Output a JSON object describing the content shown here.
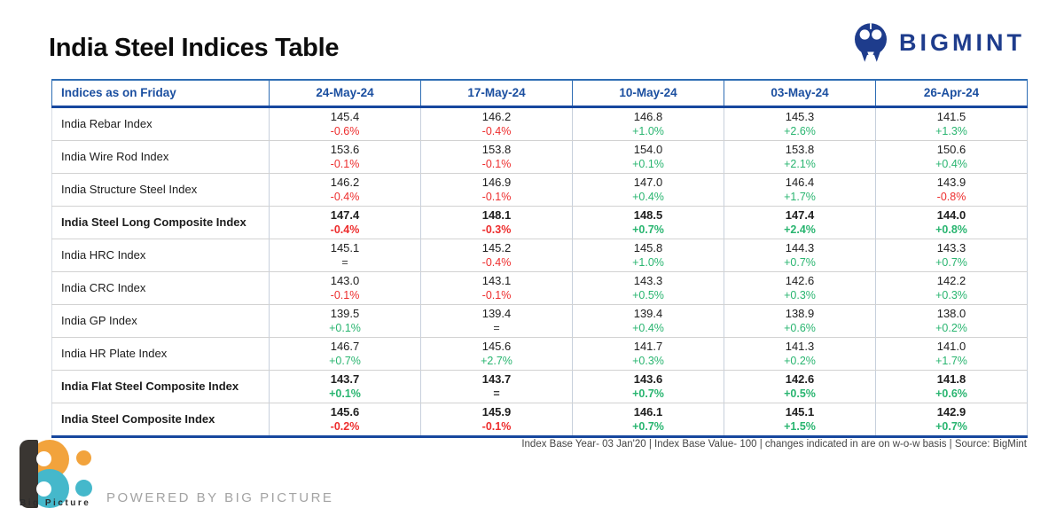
{
  "title": "India Steel Indices Table",
  "brand": {
    "name": "BIGMINT",
    "color": "#1e3c8c"
  },
  "chart_data": {
    "type": "table",
    "title": "India Steel Indices Table",
    "header_label": "Indices as on Friday",
    "columns": [
      "24-May-24",
      "17-May-24",
      "10-May-24",
      "03-May-24",
      "26-Apr-24"
    ],
    "rows": [
      {
        "name": "India Rebar Index",
        "bold": false,
        "values": [
          "145.4",
          "146.2",
          "146.8",
          "145.3",
          "141.5"
        ],
        "changes": [
          "-0.6%",
          "-0.4%",
          "+1.0%",
          "+2.6%",
          "+1.3%"
        ],
        "dirs": [
          "down",
          "down",
          "up",
          "up",
          "up"
        ]
      },
      {
        "name": "India Wire Rod Index",
        "bold": false,
        "values": [
          "153.6",
          "153.8",
          "154.0",
          "153.8",
          "150.6"
        ],
        "changes": [
          "-0.1%",
          "-0.1%",
          "+0.1%",
          "+2.1%",
          "+0.4%"
        ],
        "dirs": [
          "down",
          "down",
          "up",
          "up",
          "up"
        ]
      },
      {
        "name": "India Structure Steel Index",
        "bold": false,
        "values": [
          "146.2",
          "146.9",
          "147.0",
          "146.4",
          "143.9"
        ],
        "changes": [
          "-0.4%",
          "-0.1%",
          "+0.4%",
          "+1.7%",
          "-0.8%"
        ],
        "dirs": [
          "down",
          "down",
          "up",
          "up",
          "down"
        ]
      },
      {
        "name": "India Steel Long Composite Index",
        "bold": true,
        "values": [
          "147.4",
          "148.1",
          "148.5",
          "147.4",
          "144.0"
        ],
        "changes": [
          "-0.4%",
          "-0.3%",
          "+0.7%",
          "+2.4%",
          "+0.8%"
        ],
        "dirs": [
          "down",
          "down",
          "up",
          "up",
          "up"
        ]
      },
      {
        "name": "India HRC Index",
        "bold": false,
        "values": [
          "145.1",
          "145.2",
          "145.8",
          "144.3",
          "143.3"
        ],
        "changes": [
          "=",
          "-0.4%",
          "+1.0%",
          "+0.7%",
          "+0.7%"
        ],
        "dirs": [
          "flat",
          "down",
          "up",
          "up",
          "up"
        ]
      },
      {
        "name": "India CRC Index",
        "bold": false,
        "values": [
          "143.0",
          "143.1",
          "143.3",
          "142.6",
          "142.2"
        ],
        "changes": [
          "-0.1%",
          "-0.1%",
          "+0.5%",
          "+0.3%",
          "+0.3%"
        ],
        "dirs": [
          "down",
          "down",
          "up",
          "up",
          "up"
        ]
      },
      {
        "name": "India GP Index",
        "bold": false,
        "values": [
          "139.5",
          "139.4",
          "139.4",
          "138.9",
          "138.0"
        ],
        "changes": [
          "+0.1%",
          "=",
          "+0.4%",
          "+0.6%",
          "+0.2%"
        ],
        "dirs": [
          "up",
          "flat",
          "up",
          "up",
          "up"
        ]
      },
      {
        "name": "India HR Plate Index",
        "bold": false,
        "values": [
          "146.7",
          "145.6",
          "141.7",
          "141.3",
          "141.0"
        ],
        "changes": [
          "+0.7%",
          "+2.7%",
          "+0.3%",
          "+0.2%",
          "+1.7%"
        ],
        "dirs": [
          "up",
          "up",
          "up",
          "up",
          "up"
        ]
      },
      {
        "name": "India Flat Steel Composite Index",
        "bold": true,
        "values": [
          "143.7",
          "143.7",
          "143.6",
          "142.6",
          "141.8"
        ],
        "changes": [
          "+0.1%",
          "=",
          "+0.7%",
          "+0.5%",
          "+0.6%"
        ],
        "dirs": [
          "up",
          "flat",
          "up",
          "up",
          "up"
        ]
      },
      {
        "name": "India Steel Composite Index",
        "bold": true,
        "values": [
          "145.6",
          "145.9",
          "146.1",
          "145.1",
          "142.9"
        ],
        "changes": [
          "-0.2%",
          "-0.1%",
          "+0.7%",
          "+1.5%",
          "+0.7%"
        ],
        "dirs": [
          "down",
          "down",
          "up",
          "up",
          "up"
        ]
      }
    ],
    "colors": {
      "up": "#29b570",
      "down": "#ed2d2d",
      "flat": "#3a3a3a"
    }
  },
  "footnote": "Index Base Year- 03 Jan'20 | Index Base Value- 100 | changes indicated in are on w-o-w basis | Source: BigMint",
  "footer": {
    "logo_text": "Big Picture",
    "powered_by": "POWERED BY BIG PICTURE"
  }
}
